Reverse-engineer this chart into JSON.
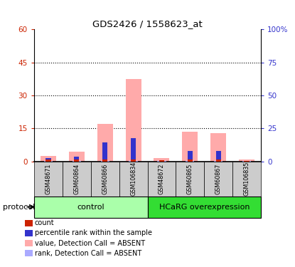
{
  "title": "GDS2426 / 1558623_at",
  "samples": [
    "GSM48671",
    "GSM60864",
    "GSM60866",
    "GSM106834",
    "GSM48672",
    "GSM60865",
    "GSM60867",
    "GSM106835"
  ],
  "count_values": [
    1.0,
    1.0,
    1.0,
    1.0,
    0.5,
    1.0,
    1.0,
    0.3
  ],
  "rank_values": [
    2.5,
    3.5,
    14.5,
    17.5,
    0.0,
    8.0,
    8.0,
    0.0
  ],
  "absent_values": [
    2.5,
    4.5,
    17.0,
    37.5,
    1.5,
    13.5,
    13.0,
    1.0
  ],
  "absent_rank": [
    0.5,
    0.5,
    0.5,
    0.5,
    0.5,
    0.5,
    0.5,
    0.5
  ],
  "ylim_left": [
    0,
    60
  ],
  "ylim_right": [
    0,
    100
  ],
  "yticks_left": [
    0,
    15,
    30,
    45,
    60
  ],
  "ytick_labels_left": [
    "0",
    "15",
    "30",
    "45",
    "60"
  ],
  "yticks_right": [
    0,
    25,
    50,
    75,
    100
  ],
  "ytick_labels_right": [
    "0",
    "25",
    "50",
    "75",
    "100%"
  ],
  "color_count": "#cc2200",
  "color_rank": "#3333cc",
  "color_absent_value": "#ffaaaa",
  "color_absent_rank": "#aaaaff",
  "color_control_bg": "#aaffaa",
  "color_hcarg_bg": "#33dd33",
  "color_sample_bg": "#cccccc",
  "bar_width": 0.55,
  "group_label_control": "control",
  "group_label_hcarg": "HCaRG overexpression",
  "protocol_label": "protocol",
  "legend_items": [
    {
      "label": "count",
      "color": "#cc2200"
    },
    {
      "label": "percentile rank within the sample",
      "color": "#3333cc"
    },
    {
      "label": "value, Detection Call = ABSENT",
      "color": "#ffaaaa"
    },
    {
      "label": "rank, Detection Call = ABSENT",
      "color": "#aaaaff"
    }
  ],
  "n_control": 4,
  "n_hcarg": 4
}
